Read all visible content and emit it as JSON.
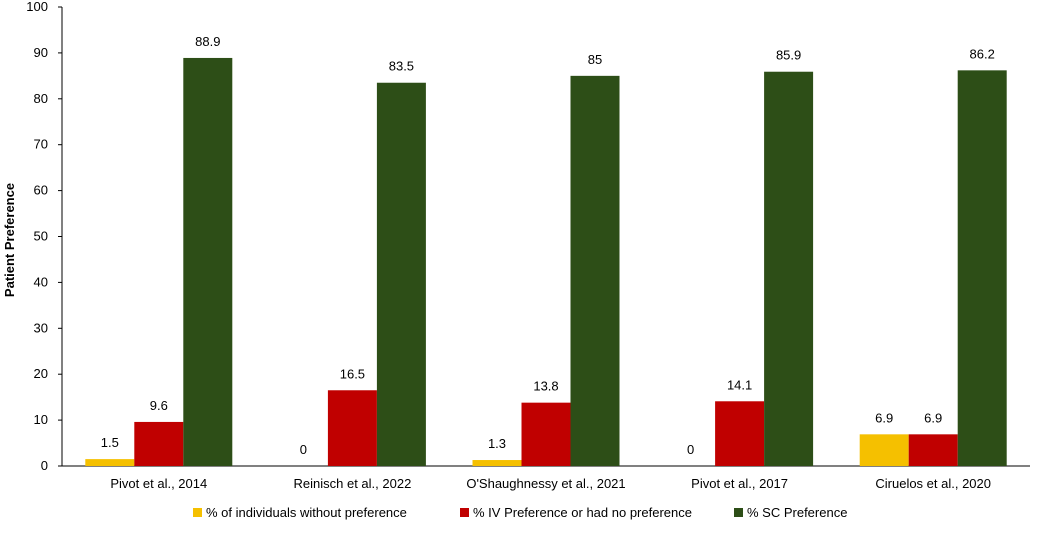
{
  "chart_data": {
    "type": "bar",
    "title": "",
    "xlabel": "",
    "ylabel": "Patient Preference",
    "ylim": [
      0,
      100
    ],
    "yticks": [
      0,
      10,
      20,
      30,
      40,
      50,
      60,
      70,
      80,
      90,
      100
    ],
    "grid": false,
    "legend_position": "bottom",
    "categories": [
      "Pivot et al., 2014",
      "Reinisch et al., 2022",
      "O'Shaughnessy et al., 2021",
      "Pivot et al., 2017",
      "Ciruelos et al., 2020"
    ],
    "series": [
      {
        "name": "% of individuals without preference",
        "color": "#f5c000",
        "values": [
          1.5,
          0,
          1.3,
          0,
          6.9
        ]
      },
      {
        "name": "% IV Preference or had no preference",
        "color": "#c00000",
        "values": [
          9.6,
          16.5,
          13.8,
          14.1,
          6.9
        ]
      },
      {
        "name": "% SC Preference",
        "color": "#2d4e17",
        "values": [
          88.9,
          83.5,
          85,
          85.9,
          86.2
        ]
      }
    ]
  }
}
